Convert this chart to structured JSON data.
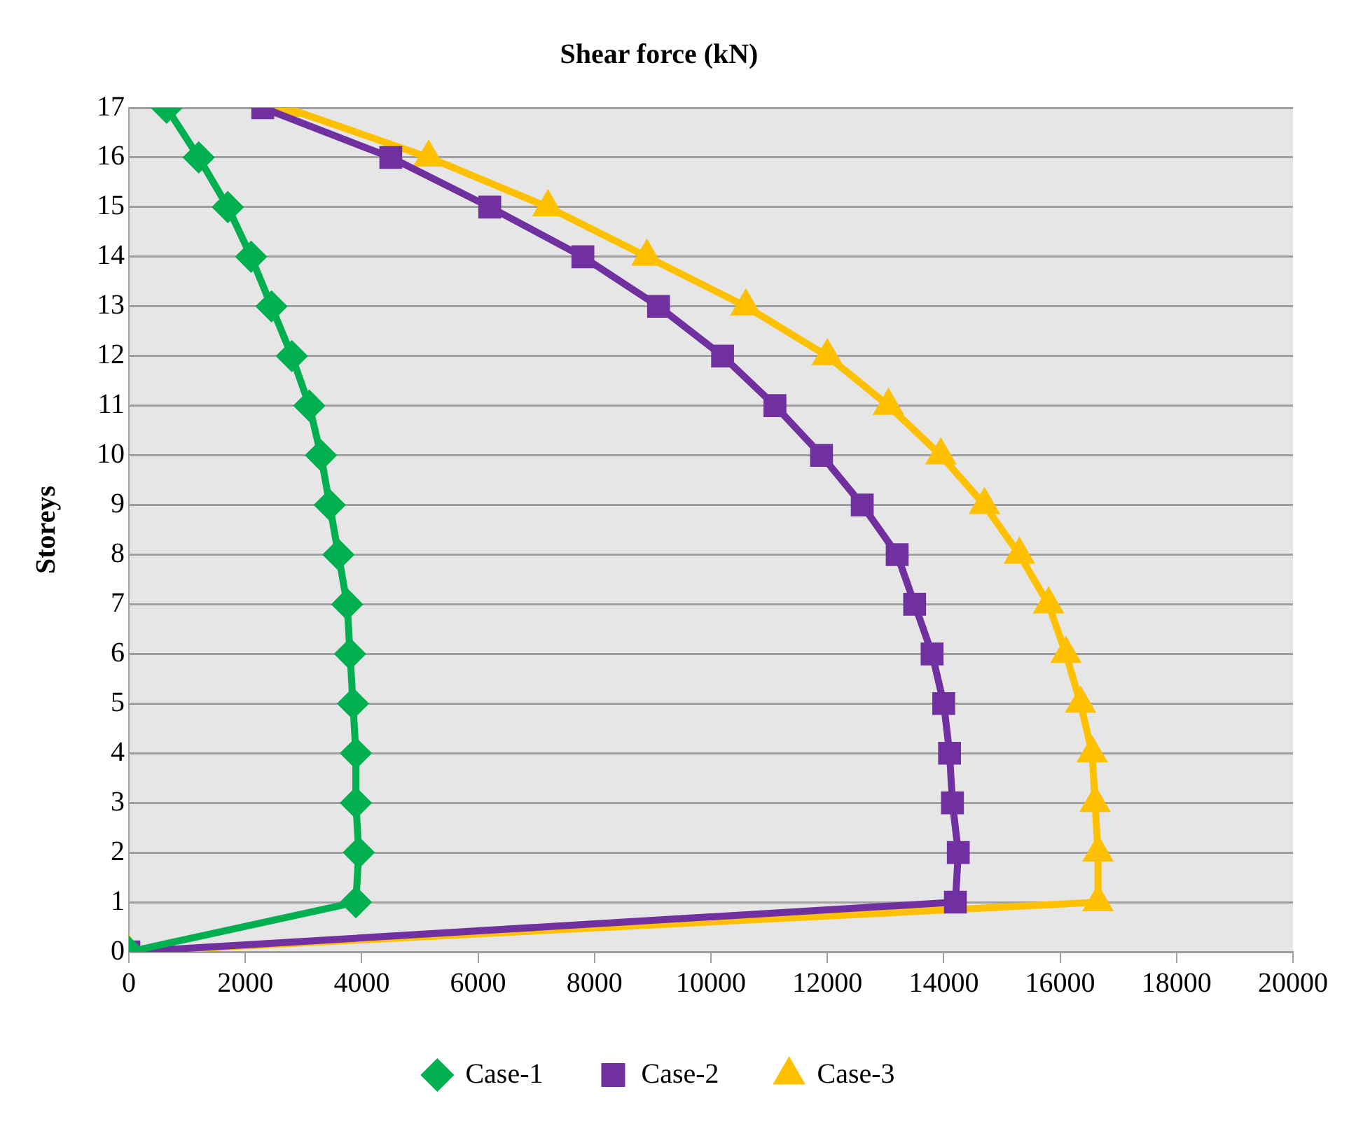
{
  "chart_data": {
    "type": "line",
    "title": "Shear force (kN)",
    "ylabel": "Storeys",
    "xlim": [
      0,
      20000
    ],
    "xticks": [
      0,
      2000,
      4000,
      6000,
      8000,
      10000,
      12000,
      14000,
      16000,
      18000,
      20000
    ],
    "ylim": [
      0,
      17
    ],
    "yticks": [
      0,
      1,
      2,
      3,
      4,
      5,
      6,
      7,
      8,
      9,
      10,
      11,
      12,
      13,
      14,
      15,
      16,
      17
    ],
    "grid": "y",
    "legend": "bottom",
    "line_style": "solid",
    "series": [
      {
        "name": "Case-1",
        "color": "#00b050",
        "marker": "diamond",
        "x": [
          0,
          3900,
          3950,
          3900,
          3900,
          3850,
          3800,
          3750,
          3600,
          3450,
          3300,
          3100,
          2800,
          2450,
          2100,
          1700,
          1200,
          650
        ],
        "values": [
          0,
          1,
          2,
          3,
          4,
          5,
          6,
          7,
          8,
          9,
          10,
          11,
          12,
          13,
          14,
          15,
          16,
          17
        ]
      },
      {
        "name": "Case-2",
        "color": "#7030a0",
        "marker": "square",
        "x": [
          0,
          14200,
          14250,
          14150,
          14100,
          14000,
          13800,
          13500,
          13200,
          12600,
          11900,
          11100,
          10200,
          9100,
          7800,
          6200,
          4500,
          2300
        ],
        "values": [
          0,
          1,
          2,
          3,
          4,
          5,
          6,
          7,
          8,
          9,
          10,
          11,
          12,
          13,
          14,
          15,
          16,
          17
        ]
      },
      {
        "name": "Case-3",
        "color": "#ffc000",
        "marker": "triangle",
        "x": [
          0,
          16650,
          16650,
          16600,
          16550,
          16350,
          16100,
          15800,
          15300,
          14700,
          13950,
          13050,
          12000,
          10600,
          8900,
          7200,
          5150,
          2700
        ],
        "values": [
          0,
          1,
          2,
          3,
          4,
          5,
          6,
          7,
          8,
          9,
          10,
          11,
          12,
          13,
          14,
          15,
          16,
          17
        ]
      }
    ]
  }
}
